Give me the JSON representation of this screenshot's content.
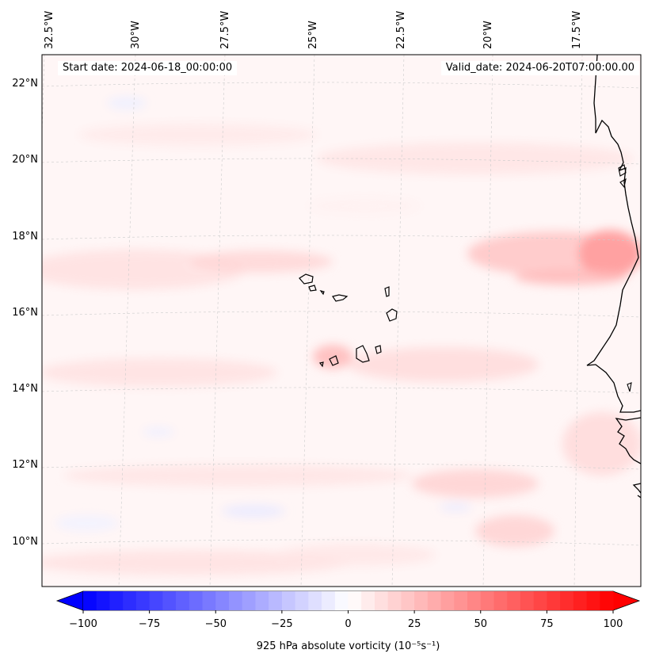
{
  "map": {
    "start_date_text": "Start date: 2024-06-18_00:00:00",
    "valid_date_text": "Valid_date: 2024-06-20T07:00:00.00",
    "lon_labels": [
      "32.5°W",
      "30°W",
      "27.5°W",
      "25°W",
      "22.5°W",
      "20°W",
      "17.5°W"
    ],
    "lat_labels": [
      "22°N",
      "20°N",
      "18°N",
      "16°N",
      "14°N",
      "12°N",
      "10°N"
    ]
  },
  "colorbar": {
    "label": "925 hPa absolute vorticity (10⁻⁵s⁻¹)",
    "ticks": [
      "−100",
      "−75",
      "−50",
      "−25",
      "0",
      "25",
      "50",
      "75",
      "100"
    ],
    "min": -100,
    "max": 100,
    "negative_color": "#0000ff",
    "positive_color": "#ff0000"
  },
  "colors": {
    "coastline": "#000000",
    "grid": "#cccccc",
    "field_base": "#fff6f6"
  }
}
